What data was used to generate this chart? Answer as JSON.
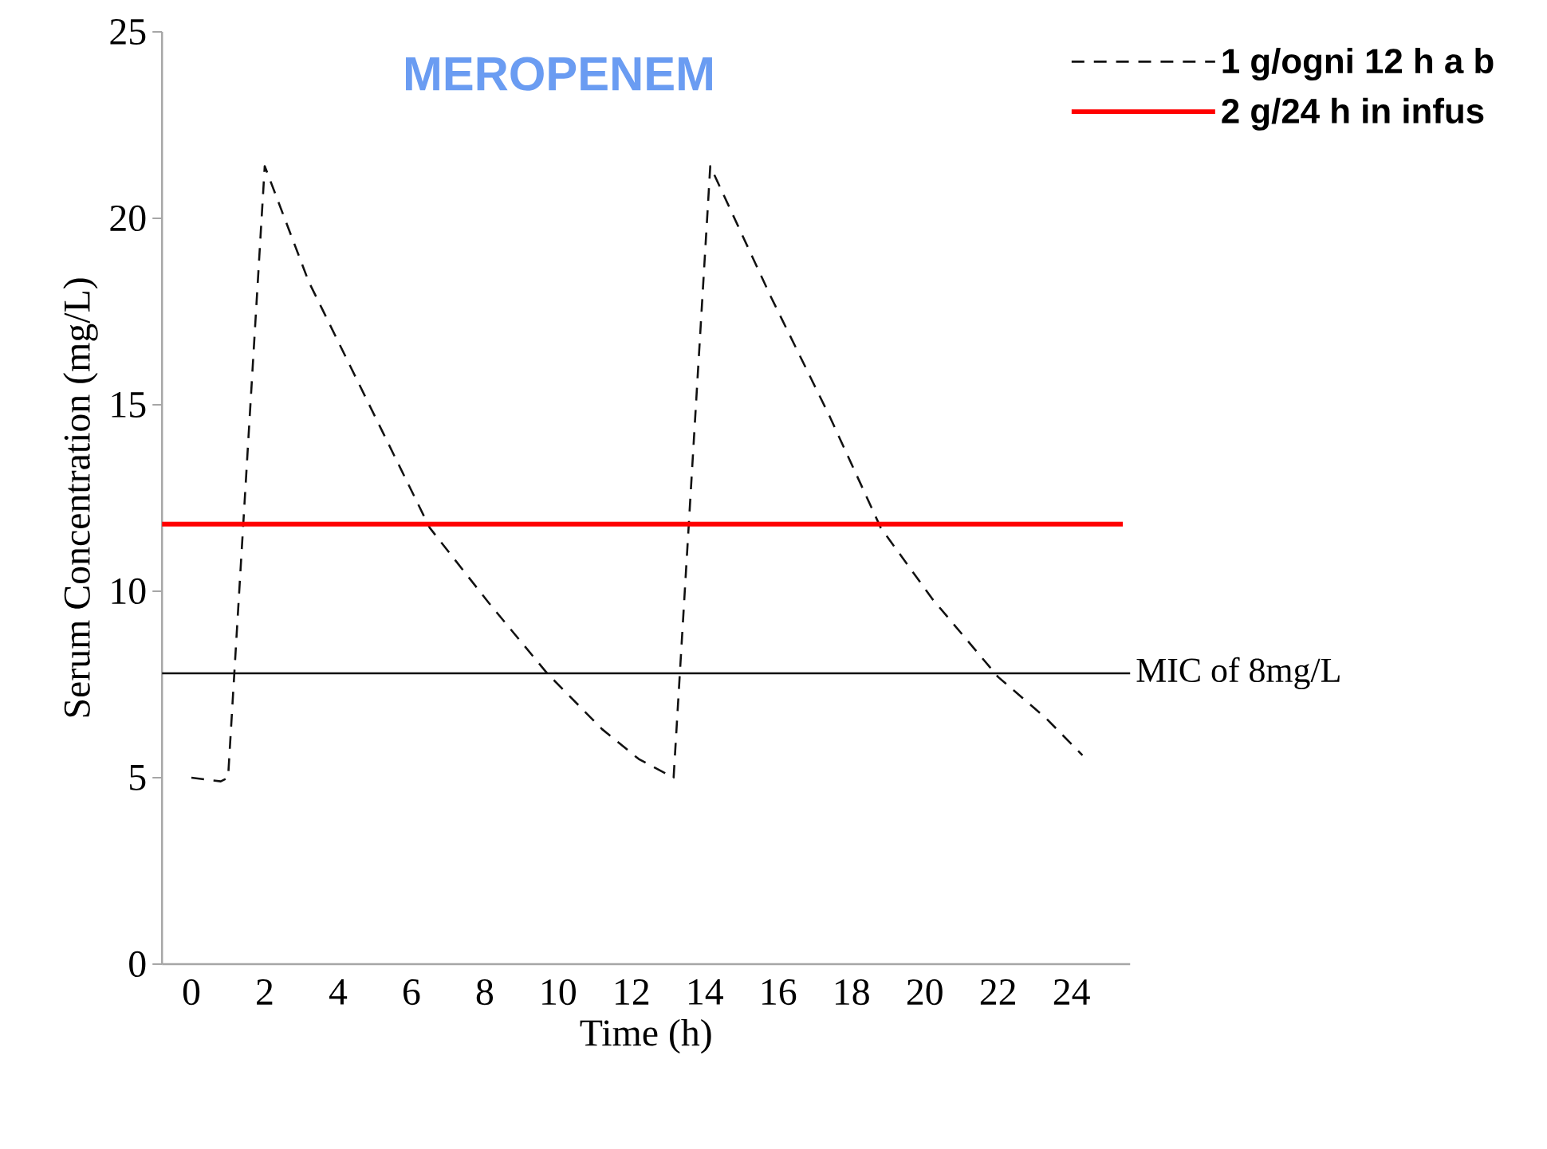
{
  "chart_data": {
    "type": "line",
    "title": "MEROPENEM",
    "xlabel": "Time (h)",
    "ylabel": "Serum Concentration (mg/L)",
    "xlim": [
      -0.8,
      25.6
    ],
    "ylim": [
      0,
      25
    ],
    "xticks": [
      0,
      2,
      4,
      6,
      8,
      10,
      12,
      14,
      16,
      18,
      20,
      22,
      24
    ],
    "yticks": [
      0,
      5,
      10,
      15,
      20,
      25
    ],
    "grid": false,
    "legend": "top right",
    "marker": "none",
    "series": [
      {
        "name": "1 g/ogni 12 h a b",
        "color": "#111111",
        "line_style": "dashed",
        "x": [
          0,
          0.8,
          1.0,
          2.0,
          3.2,
          4.3,
          5.3,
          6.5,
          8.1,
          9.7,
          11.2,
          12.2,
          13.15,
          14.15,
          15.8,
          17.4,
          18.8,
          20.2,
          22.0,
          23.3,
          24.3
        ],
        "values": [
          5.0,
          4.9,
          5.0,
          21.4,
          18.3,
          16.1,
          14.1,
          11.7,
          9.7,
          7.8,
          6.3,
          5.5,
          5.0,
          21.4,
          17.9,
          14.7,
          11.7,
          9.8,
          7.7,
          6.6,
          5.6
        ]
      },
      {
        "name": "2 g/24 h in infus",
        "color": "#ff0000",
        "line_style": "solid",
        "x": [
          -0.8,
          25.4
        ],
        "values": [
          11.8,
          11.8
        ]
      }
    ],
    "ref_lines": [
      {
        "axis": "y",
        "value": 7.8,
        "label": "MIC of 8mg/L",
        "color": "#111111",
        "line_style": "solid"
      }
    ]
  }
}
